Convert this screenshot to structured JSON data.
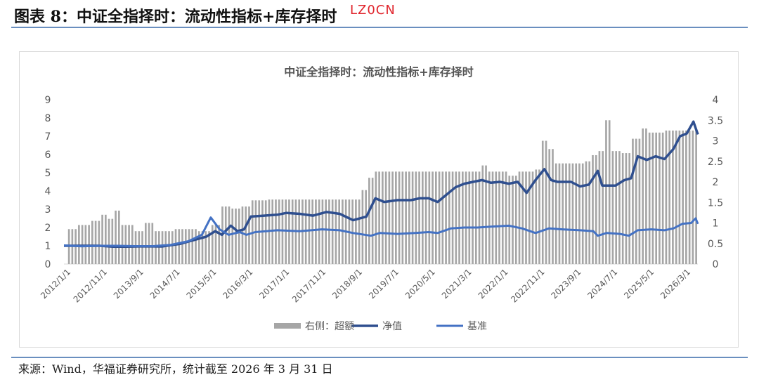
{
  "header": {
    "title": "图表 8：中证全指择时：流动性指标+库存择时"
  },
  "watermark": "LZ0CN",
  "source": "来源：Wind，华福证券研究所，统计截至 2026 年 3 月 31 日",
  "chart_data": {
    "type": "bar+line",
    "title": "中证全指择时：流动性指标+库存择时",
    "left_axis": {
      "min": 0,
      "max": 9,
      "ticks": [
        0,
        1,
        2,
        3,
        4,
        5,
        6,
        7,
        8,
        9
      ]
    },
    "right_axis": {
      "min": 0,
      "max": 4,
      "ticks": [
        0,
        0.5,
        1,
        1.5,
        2,
        2.5,
        3,
        3.5,
        4
      ],
      "tick_labels": [
        "0",
        "0.5",
        "1",
        "1.5",
        "2",
        "2.5",
        "3",
        "3.5",
        "4"
      ]
    },
    "x_range": [
      2012.0,
      2026.25
    ],
    "x_ticks": [
      "2012/1/1",
      "2012/11/1",
      "2013/9/1",
      "2014/7/1",
      "2015/5/1",
      "2016/3/1",
      "2017/1/1",
      "2017/11/1",
      "2018/9/1",
      "2019/7/1",
      "2020/5/1",
      "2021/3/1",
      "2022/1/1",
      "2022/11/1",
      "2023/9/1",
      "2024/7/1",
      "2025/5/1",
      "2026/3/1"
    ],
    "legend": {
      "position": "bottom",
      "entries": [
        "右侧：超额",
        "净值",
        "基准"
      ]
    },
    "series": [
      {
        "name": "右侧：超额",
        "kind": "bar",
        "axis": "right",
        "color": "#a6a6a6",
        "points": [
          [
            2012.05,
            0.85
          ],
          [
            2012.3,
            0.95
          ],
          [
            2012.6,
            1.05
          ],
          [
            2012.85,
            1.2
          ],
          [
            2013.0,
            1.1
          ],
          [
            2013.1,
            1.3
          ],
          [
            2013.3,
            0.95
          ],
          [
            2013.6,
            0.8
          ],
          [
            2013.8,
            1.0
          ],
          [
            2014.0,
            0.8
          ],
          [
            2014.5,
            0.85
          ],
          [
            2015.0,
            0.8
          ],
          [
            2015.3,
            0.95
          ],
          [
            2015.55,
            1.4
          ],
          [
            2015.75,
            1.35
          ],
          [
            2016.0,
            1.4
          ],
          [
            2016.2,
            1.55
          ],
          [
            2016.6,
            1.57
          ],
          [
            2017.5,
            1.57
          ],
          [
            2018.5,
            1.57
          ],
          [
            2018.65,
            1.8
          ],
          [
            2018.8,
            2.1
          ],
          [
            2018.95,
            2.25
          ],
          [
            2019.5,
            2.25
          ],
          [
            2020.5,
            2.25
          ],
          [
            2021.3,
            2.25
          ],
          [
            2021.4,
            2.4
          ],
          [
            2021.5,
            2.25
          ],
          [
            2021.9,
            2.25
          ],
          [
            2022.0,
            2.15
          ],
          [
            2022.2,
            2.25
          ],
          [
            2022.55,
            2.3
          ],
          [
            2022.75,
            3.0
          ],
          [
            2022.9,
            2.8
          ],
          [
            2023.05,
            2.45
          ],
          [
            2023.7,
            2.5
          ],
          [
            2023.85,
            2.65
          ],
          [
            2024.0,
            2.75
          ],
          [
            2024.15,
            3.5
          ],
          [
            2024.3,
            2.75
          ],
          [
            2024.5,
            2.7
          ],
          [
            2024.75,
            3.05
          ],
          [
            2024.95,
            3.3
          ],
          [
            2025.15,
            3.2
          ],
          [
            2025.5,
            3.25
          ],
          [
            2026.2,
            3.25
          ]
        ]
      },
      {
        "name": "净值",
        "kind": "line",
        "axis": "left",
        "color": "#2f4f8f",
        "points": [
          [
            2012.0,
            1.0
          ],
          [
            2012.4,
            1.0
          ],
          [
            2012.8,
            1.0
          ],
          [
            2013.1,
            0.95
          ],
          [
            2013.4,
            0.95
          ],
          [
            2013.8,
            0.97
          ],
          [
            2014.2,
            0.96
          ],
          [
            2014.6,
            1.1
          ],
          [
            2014.9,
            1.3
          ],
          [
            2015.2,
            1.5
          ],
          [
            2015.4,
            1.8
          ],
          [
            2015.55,
            1.6
          ],
          [
            2015.75,
            2.1
          ],
          [
            2015.9,
            1.8
          ],
          [
            2016.05,
            1.9
          ],
          [
            2016.2,
            2.6
          ],
          [
            2016.5,
            2.65
          ],
          [
            2016.8,
            2.7
          ],
          [
            2017.0,
            2.8
          ],
          [
            2017.3,
            2.75
          ],
          [
            2017.6,
            2.65
          ],
          [
            2017.9,
            2.85
          ],
          [
            2018.2,
            2.75
          ],
          [
            2018.5,
            2.4
          ],
          [
            2018.8,
            2.6
          ],
          [
            2019.0,
            3.6
          ],
          [
            2019.2,
            3.4
          ],
          [
            2019.5,
            3.5
          ],
          [
            2019.8,
            3.5
          ],
          [
            2020.0,
            3.6
          ],
          [
            2020.2,
            3.6
          ],
          [
            2020.4,
            3.4
          ],
          [
            2020.6,
            3.8
          ],
          [
            2020.8,
            4.2
          ],
          [
            2021.0,
            4.4
          ],
          [
            2021.2,
            4.5
          ],
          [
            2021.4,
            4.6
          ],
          [
            2021.6,
            4.45
          ],
          [
            2021.8,
            4.5
          ],
          [
            2022.0,
            4.4
          ],
          [
            2022.2,
            4.5
          ],
          [
            2022.4,
            3.9
          ],
          [
            2022.6,
            4.6
          ],
          [
            2022.8,
            5.2
          ],
          [
            2022.95,
            4.6
          ],
          [
            2023.1,
            4.5
          ],
          [
            2023.4,
            4.5
          ],
          [
            2023.6,
            4.25
          ],
          [
            2023.8,
            4.35
          ],
          [
            2024.0,
            5.1
          ],
          [
            2024.1,
            4.3
          ],
          [
            2024.4,
            4.3
          ],
          [
            2024.6,
            4.6
          ],
          [
            2024.75,
            4.7
          ],
          [
            2024.9,
            5.9
          ],
          [
            2025.1,
            5.7
          ],
          [
            2025.3,
            5.9
          ],
          [
            2025.5,
            5.75
          ],
          [
            2025.7,
            6.3
          ],
          [
            2025.85,
            7.0
          ],
          [
            2026.0,
            7.15
          ],
          [
            2026.15,
            7.8
          ],
          [
            2026.25,
            7.1
          ]
        ]
      },
      {
        "name": "基准",
        "kind": "line",
        "axis": "left",
        "color": "#4472c4",
        "points": [
          [
            2012.0,
            1.02
          ],
          [
            2012.4,
            0.97
          ],
          [
            2012.8,
            1.0
          ],
          [
            2013.2,
            1.0
          ],
          [
            2013.6,
            0.98
          ],
          [
            2014.0,
            0.98
          ],
          [
            2014.4,
            1.05
          ],
          [
            2014.8,
            1.25
          ],
          [
            2015.1,
            1.6
          ],
          [
            2015.3,
            2.55
          ],
          [
            2015.5,
            1.9
          ],
          [
            2015.7,
            1.6
          ],
          [
            2015.95,
            1.75
          ],
          [
            2016.1,
            1.6
          ],
          [
            2016.3,
            1.75
          ],
          [
            2016.8,
            1.85
          ],
          [
            2017.3,
            1.8
          ],
          [
            2017.8,
            1.9
          ],
          [
            2018.2,
            1.85
          ],
          [
            2018.5,
            1.7
          ],
          [
            2018.9,
            1.55
          ],
          [
            2019.1,
            1.7
          ],
          [
            2019.5,
            1.65
          ],
          [
            2019.9,
            1.7
          ],
          [
            2020.2,
            1.75
          ],
          [
            2020.4,
            1.7
          ],
          [
            2020.7,
            1.95
          ],
          [
            2021.0,
            2.0
          ],
          [
            2021.3,
            2.0
          ],
          [
            2021.6,
            2.05
          ],
          [
            2022.0,
            2.1
          ],
          [
            2022.3,
            1.95
          ],
          [
            2022.6,
            1.7
          ],
          [
            2022.9,
            1.95
          ],
          [
            2023.2,
            1.9
          ],
          [
            2023.6,
            1.85
          ],
          [
            2023.9,
            1.8
          ],
          [
            2024.0,
            1.55
          ],
          [
            2024.2,
            1.7
          ],
          [
            2024.5,
            1.65
          ],
          [
            2024.7,
            1.55
          ],
          [
            2024.9,
            1.85
          ],
          [
            2025.2,
            1.9
          ],
          [
            2025.5,
            1.85
          ],
          [
            2025.7,
            1.95
          ],
          [
            2025.9,
            2.2
          ],
          [
            2026.1,
            2.25
          ],
          [
            2026.2,
            2.5
          ],
          [
            2026.25,
            2.2
          ]
        ]
      }
    ]
  }
}
